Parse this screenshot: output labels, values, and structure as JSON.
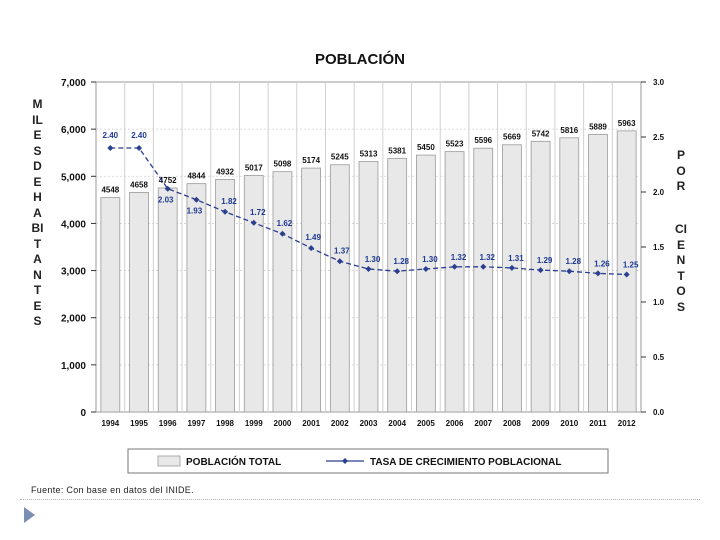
{
  "chart_data": {
    "type": "bar+line",
    "title": "POBLACIÓN",
    "categories": [
      "1994",
      "1995",
      "1996",
      "1997",
      "1998",
      "1999",
      "2000",
      "2001",
      "2002",
      "2003",
      "2004",
      "2005",
      "2006",
      "2007",
      "2008",
      "2009",
      "2010",
      "2011",
      "2012"
    ],
    "series": [
      {
        "name": "POBLACIÓN TOTAL",
        "type": "bar",
        "axis": "left",
        "values": [
          4548,
          4658,
          4752,
          4844,
          4932,
          5017,
          5098,
          5174,
          5245,
          5313,
          5381,
          5450,
          5523,
          5596,
          5669,
          5742,
          5816,
          5889,
          5963
        ],
        "labels": [
          "4548",
          "4658",
          "4752",
          "4844",
          "4932",
          "5017",
          "5098",
          "5174",
          "5245",
          "5313",
          "5381",
          "5450",
          "5523",
          "5596",
          "5669",
          "5742",
          "5816",
          "5889",
          "5963"
        ]
      },
      {
        "name": "TASA DE CRECIMIENTO POBLACIONAL",
        "type": "line",
        "axis": "right",
        "values": [
          2.4,
          2.4,
          2.03,
          1.93,
          1.82,
          1.72,
          1.62,
          1.49,
          1.37,
          1.3,
          1.28,
          1.3,
          1.32,
          1.32,
          1.31,
          1.29,
          1.28,
          1.26,
          1.25
        ],
        "labels": [
          "2.40",
          "2.40",
          "2.03",
          "1.93",
          "1.82",
          "1.72",
          "1.62",
          "1.49",
          "1.37",
          "1.30",
          "1.28",
          "1.30",
          "1.32",
          "1.32",
          "1.31",
          "1.29",
          "1.28",
          "1.26",
          "1.25"
        ]
      }
    ],
    "ylabel": "MILES DE HABITANTES",
    "ylabel2_words": [
      "POR",
      "CIENTOS"
    ],
    "ylim": [
      0,
      7000
    ],
    "yticks": [
      "0",
      "1,000",
      "2,000",
      "3,000",
      "4,000",
      "5,000",
      "6,000",
      "7,000"
    ],
    "ylim2": [
      0.0,
      3.0
    ],
    "yticks2": [
      "0.0",
      "0.5",
      "1.0",
      "1.5",
      "2.0",
      "2.5",
      "3.0"
    ],
    "grid": true,
    "legend": "bottom-center",
    "source": "Fuente: Con base en datos del INIDE."
  },
  "colors": {
    "bar_fill": "#e8e8e8",
    "bar_stroke": "#9a9a9a",
    "line": "#2a3f8f",
    "label_line": "#1f3a93",
    "text": "#111111",
    "grid": "#d0d0d0",
    "plot_bg": "#ffffff",
    "frame": "#9a9a9a"
  }
}
